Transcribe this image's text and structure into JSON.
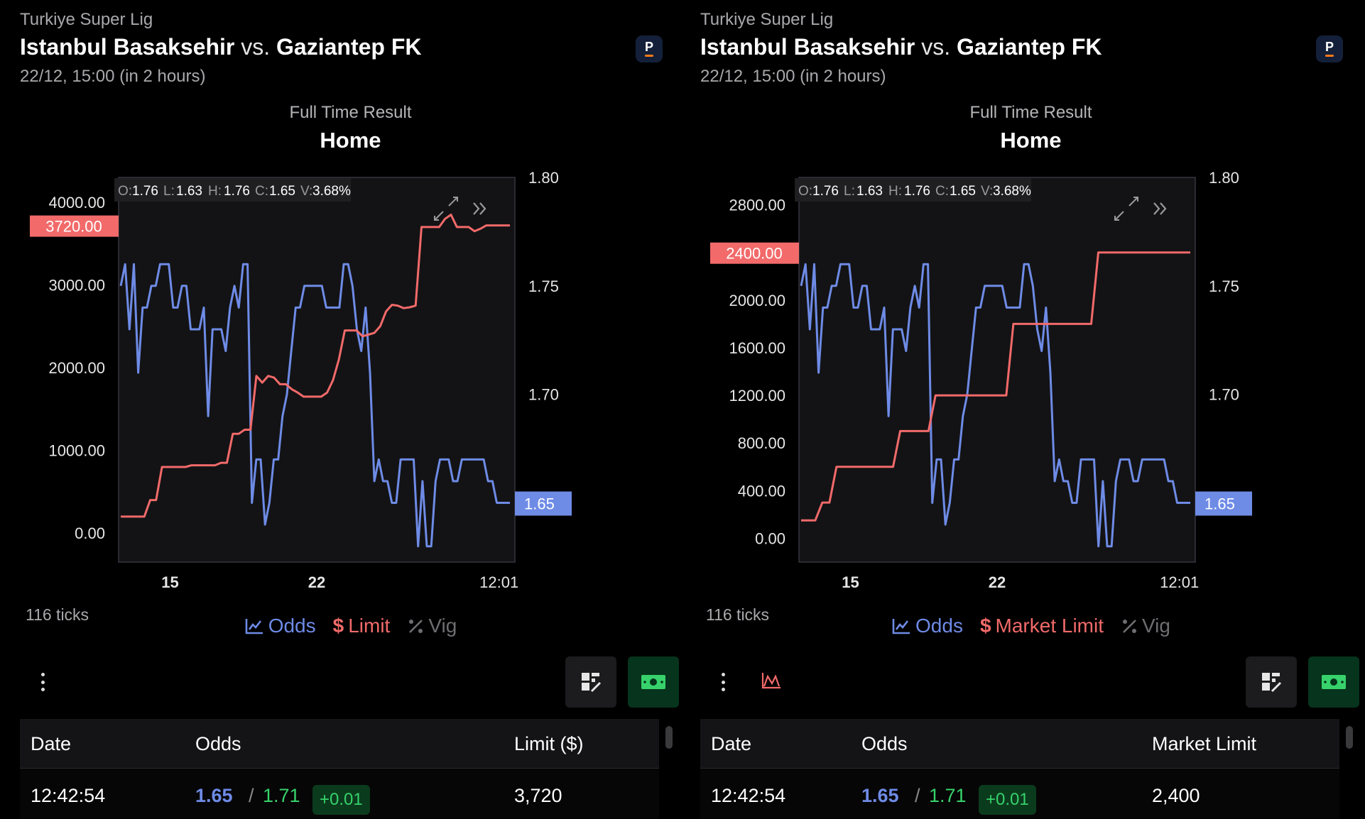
{
  "panels": [
    {
      "league": "Turkiye Super Lig",
      "home_team": "Istanbul Basaksehir",
      "vs": "vs.",
      "away_team": "Gaziantep FK",
      "kickoff": "22/12, 15:00 (in 2 hours)",
      "bookmaker_logo": "P",
      "market": "Full Time Result",
      "selection": "Home",
      "ohlcv": {
        "o_label": "O:",
        "o": "1.76",
        "l_label": "L:",
        "l": "1.63",
        "h_label": "H:",
        "h": "1.76",
        "c_label": "C:",
        "c": "1.65",
        "v_label": "V:",
        "v": "3.68%"
      },
      "ticks": "116 ticks",
      "legend": {
        "odds": "Odds",
        "limit": "Limit",
        "vig": "Vig"
      },
      "table": {
        "headers": {
          "date": "Date",
          "odds": "Odds",
          "limit": "Limit ($)"
        },
        "rows": [
          {
            "date": "12:42:54",
            "back": "1.65",
            "sep": "/",
            "lay": "1.71",
            "change": "+0.01",
            "limit": "3,720"
          }
        ]
      }
    },
    {
      "league": "Turkiye Super Lig",
      "home_team": "Istanbul Basaksehir",
      "vs": "vs.",
      "away_team": "Gaziantep FK",
      "kickoff": "22/12, 15:00 (in 2 hours)",
      "bookmaker_logo": "P",
      "market": "Full Time Result",
      "selection": "Home",
      "ohlcv": {
        "o_label": "O:",
        "o": "1.76",
        "l_label": "L:",
        "l": "1.63",
        "h_label": "H:",
        "h": "1.76",
        "c_label": "C:",
        "c": "1.65",
        "v_label": "V:",
        "v": "3.68%"
      },
      "ticks": "116 ticks",
      "legend": {
        "odds": "Odds",
        "limit": "Market Limit",
        "vig": "Vig"
      },
      "table": {
        "headers": {
          "date": "Date",
          "odds": "Odds",
          "limit": "Market Limit"
        },
        "rows": [
          {
            "date": "12:42:54",
            "back": "1.65",
            "sep": "/",
            "lay": "1.71",
            "change": "+0.01",
            "limit": "2,400"
          }
        ]
      }
    }
  ],
  "colors": {
    "odds": "#6e8be6",
    "limit": "#f26a6a",
    "vig": "#6e6e72",
    "positive": "#37d26b"
  },
  "icons": [
    "chart-line-icon",
    "dollar-icon",
    "percent-icon",
    "more-vertical-icon",
    "wave-icon",
    "grid-edit-icon",
    "cash-icon",
    "expand-icon",
    "double-chevron-right-icon"
  ],
  "chart_data": [
    {
      "type": "line",
      "x_tick_labels": [
        "15",
        "22",
        "12:01"
      ],
      "x_tick_bold": [
        true,
        true,
        false
      ],
      "y_left": {
        "ticks": [
          "0.00",
          "1000.00",
          "2000.00",
          "3000.00",
          "4000.00"
        ],
        "range": [
          -350,
          4300
        ],
        "last_label": "3720.00"
      },
      "y_right": {
        "ticks": [
          "1.65",
          "1.70",
          "1.75",
          "1.80"
        ],
        "range": [
          1.6227,
          1.8
        ],
        "last_label": "1.65"
      },
      "series": [
        {
          "name": "Odds",
          "axis": "right",
          "values": [
            1.75,
            1.76,
            1.73,
            1.76,
            1.71,
            1.74,
            1.74,
            1.75,
            1.75,
            1.76,
            1.76,
            1.76,
            1.74,
            1.74,
            1.75,
            1.75,
            1.73,
            1.73,
            1.73,
            1.74,
            1.69,
            1.73,
            1.73,
            1.73,
            1.72,
            1.74,
            1.75,
            1.74,
            1.76,
            1.76,
            1.65,
            1.67,
            1.67,
            1.64,
            1.65,
            1.67,
            1.67,
            1.69,
            1.7,
            1.72,
            1.74,
            1.74,
            1.75,
            1.75,
            1.75,
            1.75,
            1.75,
            1.74,
            1.74,
            1.74,
            1.74,
            1.76,
            1.76,
            1.75,
            1.73,
            1.72,
            1.74,
            1.71,
            1.66,
            1.67,
            1.66,
            1.66,
            1.65,
            1.65,
            1.67,
            1.67,
            1.67,
            1.67,
            1.63,
            1.66,
            1.63,
            1.63,
            1.66,
            1.67,
            1.67,
            1.67,
            1.66,
            1.66,
            1.67,
            1.67,
            1.67,
            1.67,
            1.67,
            1.67,
            1.66,
            1.66,
            1.65,
            1.65,
            1.65,
            1.65
          ]
        },
        {
          "name": "Limit",
          "axis": "left",
          "values": [
            200,
            200,
            200,
            200,
            200,
            400,
            400,
            800,
            800,
            800,
            800,
            800,
            820,
            820,
            820,
            820,
            820,
            850,
            850,
            1200,
            1200,
            1250,
            1250,
            1900,
            1820,
            1900,
            1880,
            1800,
            1800,
            1740,
            1700,
            1650,
            1650,
            1650,
            1650,
            1700,
            1850,
            2100,
            2450,
            2450,
            2450,
            2380,
            2400,
            2420,
            2500,
            2680,
            2760,
            2750,
            2720,
            2730,
            2750,
            3700,
            3700,
            3700,
            3700,
            3800,
            3850,
            3700,
            3700,
            3700,
            3650,
            3680,
            3720,
            3720,
            3720,
            3720,
            3720
          ]
        }
      ]
    },
    {
      "type": "line",
      "x_tick_labels": [
        "15",
        "22",
        "12:01"
      ],
      "x_tick_bold": [
        true,
        true,
        false
      ],
      "y_left": {
        "ticks": [
          "0.00",
          "400.00",
          "800.00",
          "1200.00",
          "1600.00",
          "2000.00",
          "2400.00",
          "2800.00"
        ],
        "range": [
          -200,
          3030
        ],
        "last_label": "2400.00"
      },
      "y_right": {
        "ticks": [
          "1.65",
          "1.70",
          "1.75",
          "1.80"
        ],
        "range": [
          1.6227,
          1.8
        ],
        "last_label": "1.65"
      },
      "series": [
        {
          "name": "Odds",
          "axis": "right",
          "values": [
            1.75,
            1.76,
            1.73,
            1.76,
            1.71,
            1.74,
            1.74,
            1.75,
            1.75,
            1.76,
            1.76,
            1.76,
            1.74,
            1.74,
            1.75,
            1.75,
            1.73,
            1.73,
            1.73,
            1.74,
            1.69,
            1.73,
            1.73,
            1.73,
            1.72,
            1.74,
            1.75,
            1.74,
            1.76,
            1.76,
            1.65,
            1.67,
            1.67,
            1.64,
            1.65,
            1.67,
            1.67,
            1.69,
            1.7,
            1.72,
            1.74,
            1.74,
            1.75,
            1.75,
            1.75,
            1.75,
            1.75,
            1.74,
            1.74,
            1.74,
            1.74,
            1.76,
            1.76,
            1.75,
            1.73,
            1.72,
            1.74,
            1.71,
            1.66,
            1.67,
            1.66,
            1.66,
            1.65,
            1.65,
            1.67,
            1.67,
            1.67,
            1.67,
            1.63,
            1.66,
            1.63,
            1.63,
            1.66,
            1.67,
            1.67,
            1.67,
            1.66,
            1.66,
            1.67,
            1.67,
            1.67,
            1.67,
            1.67,
            1.67,
            1.66,
            1.66,
            1.65,
            1.65,
            1.65,
            1.65
          ]
        },
        {
          "name": "Market Limit",
          "axis": "left",
          "values": [
            150,
            150,
            150,
            300,
            300,
            600,
            600,
            600,
            600,
            600,
            600,
            600,
            600,
            600,
            900,
            900,
            900,
            900,
            900,
            1200,
            1200,
            1200,
            1200,
            1200,
            1200,
            1200,
            1200,
            1200,
            1200,
            1200,
            1800,
            1800,
            1800,
            1800,
            1800,
            1800,
            1800,
            1800,
            1800,
            1800,
            1800,
            1800,
            2400,
            2400,
            2400,
            2400,
            2400,
            2400,
            2400,
            2400,
            2400,
            2400,
            2400,
            2400,
            2400,
            2400
          ]
        }
      ]
    }
  ]
}
